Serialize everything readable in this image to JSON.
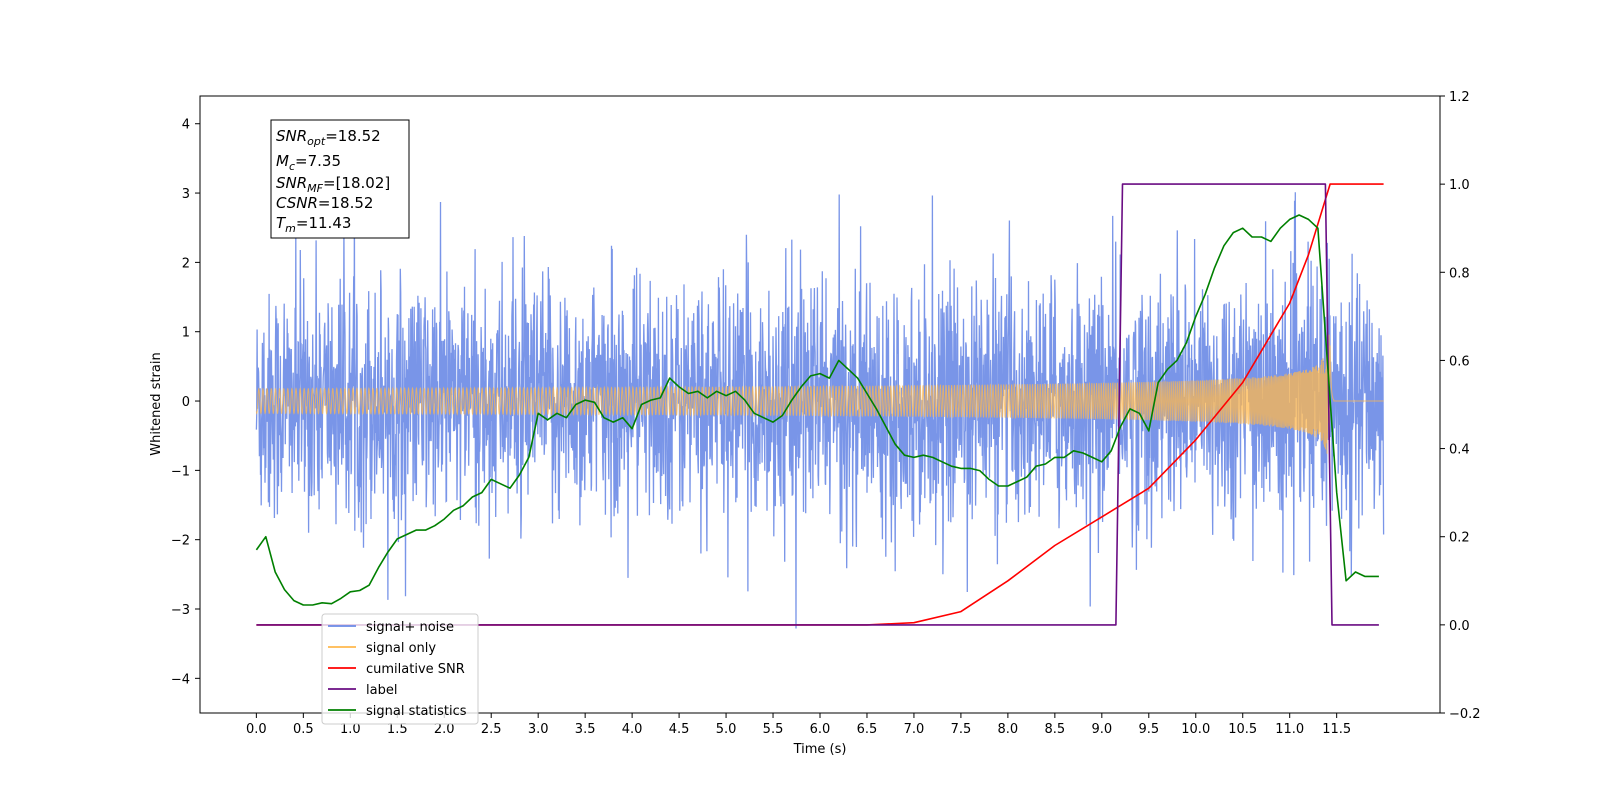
{
  "chart_data": {
    "type": "line",
    "xlabel": "Time (s)",
    "ylabel": "Whitened strain",
    "xlim": [
      -0.6,
      12.6
    ],
    "ylim": [
      -4.5,
      4.4
    ],
    "y2lim": [
      -0.2,
      1.2
    ],
    "x_ticks": [
      "0.0",
      "0.5",
      "1.0",
      "1.5",
      "2.0",
      "2.5",
      "3.0",
      "3.5",
      "4.0",
      "4.5",
      "5.0",
      "5.5",
      "6.0",
      "6.5",
      "7.0",
      "7.5",
      "8.0",
      "8.5",
      "9.0",
      "9.5",
      "10.0",
      "10.5",
      "11.0",
      "11.5"
    ],
    "y_ticks": [
      "4",
      "3",
      "2",
      "1",
      "0",
      "−1",
      "−2",
      "−3",
      "−4"
    ],
    "y2_ticks": [
      "1.2",
      "1.0",
      "0.8",
      "0.6",
      "0.4",
      "0.2",
      "0.0",
      "−0.2"
    ],
    "grid": false,
    "legend_placement": "lower-left",
    "annotation": {
      "snr_opt": {
        "base": "SNR",
        "sub": "opt",
        "value": "=18.52"
      },
      "mc": {
        "base": "M",
        "sub": "c",
        "value": "=7.35"
      },
      "snr_mf": {
        "base": "SNR",
        "sub": "MF",
        "value": "=[18.02]"
      },
      "csnr": {
        "base": "CSNR",
        "value": "=18.52"
      },
      "tm": {
        "base": "T",
        "sub": "m",
        "value": "=11.43"
      }
    },
    "series": [
      {
        "name": "signal+ noise",
        "color": "#6a8ae6",
        "axis": "left",
        "noise_sigma": 0.85,
        "x_range": [
          0.0,
          12.0
        ]
      },
      {
        "name": "signal only",
        "color": "#ffb84d",
        "axis": "left",
        "merger_time": 11.43,
        "peak_amplitude": 1.3
      },
      {
        "name": "cumilative SNR",
        "color": "#ff0000",
        "axis": "right",
        "x": [
          0.0,
          6.5,
          7.0,
          7.5,
          8.0,
          8.5,
          9.0,
          9.5,
          10.0,
          10.5,
          11.0,
          11.2,
          11.43,
          12.0
        ],
        "y": [
          0.0,
          0.0,
          0.005,
          0.03,
          0.1,
          0.18,
          0.245,
          0.31,
          0.42,
          0.55,
          0.73,
          0.84,
          1.0,
          1.0
        ]
      },
      {
        "name": "label",
        "color": "#6a0d83",
        "axis": "right",
        "x": [
          0.0,
          9.15,
          9.22,
          11.38,
          11.45,
          11.95
        ],
        "y": [
          0.0,
          0.0,
          1.0,
          1.0,
          0.0,
          0.0
        ]
      },
      {
        "name": "signal statistics",
        "color": "#008000",
        "axis": "right",
        "x": [
          0.0,
          0.1,
          0.2,
          0.3,
          0.4,
          0.5,
          0.6,
          0.7,
          0.8,
          0.9,
          1.0,
          1.1,
          1.2,
          1.3,
          1.4,
          1.5,
          1.6,
          1.7,
          1.8,
          1.9,
          2.0,
          2.1,
          2.2,
          2.3,
          2.4,
          2.5,
          2.6,
          2.7,
          2.8,
          2.9,
          3.0,
          3.1,
          3.2,
          3.3,
          3.4,
          3.5,
          3.6,
          3.7,
          3.8,
          3.9,
          4.0,
          4.1,
          4.2,
          4.3,
          4.4,
          4.5,
          4.6,
          4.7,
          4.8,
          4.9,
          5.0,
          5.1,
          5.2,
          5.3,
          5.4,
          5.5,
          5.6,
          5.7,
          5.8,
          5.9,
          6.0,
          6.1,
          6.2,
          6.3,
          6.4,
          6.5,
          6.6,
          6.7,
          6.8,
          6.9,
          7.0,
          7.1,
          7.2,
          7.3,
          7.4,
          7.5,
          7.6,
          7.7,
          7.8,
          7.9,
          8.0,
          8.1,
          8.2,
          8.3,
          8.4,
          8.5,
          8.6,
          8.7,
          8.8,
          8.9,
          9.0,
          9.1,
          9.2,
          9.3,
          9.4,
          9.5,
          9.6,
          9.7,
          9.8,
          9.9,
          10.0,
          10.1,
          10.2,
          10.3,
          10.4,
          10.5,
          10.6,
          10.7,
          10.8,
          10.9,
          11.0,
          11.1,
          11.2,
          11.3,
          11.4,
          11.5,
          11.6,
          11.7,
          11.8,
          11.9,
          11.95
        ],
        "y": [
          0.17,
          0.2,
          0.12,
          0.08,
          0.055,
          0.045,
          0.045,
          0.05,
          0.048,
          0.06,
          0.075,
          0.078,
          0.09,
          0.13,
          0.165,
          0.195,
          0.205,
          0.215,
          0.215,
          0.225,
          0.24,
          0.26,
          0.27,
          0.29,
          0.3,
          0.33,
          0.32,
          0.31,
          0.34,
          0.38,
          0.48,
          0.465,
          0.48,
          0.47,
          0.5,
          0.51,
          0.505,
          0.47,
          0.46,
          0.47,
          0.445,
          0.5,
          0.51,
          0.515,
          0.56,
          0.54,
          0.525,
          0.53,
          0.515,
          0.53,
          0.52,
          0.53,
          0.51,
          0.48,
          0.47,
          0.46,
          0.475,
          0.51,
          0.54,
          0.565,
          0.57,
          0.56,
          0.6,
          0.58,
          0.56,
          0.525,
          0.49,
          0.45,
          0.41,
          0.385,
          0.38,
          0.385,
          0.38,
          0.37,
          0.36,
          0.355,
          0.355,
          0.35,
          0.33,
          0.315,
          0.315,
          0.325,
          0.335,
          0.36,
          0.365,
          0.38,
          0.38,
          0.395,
          0.39,
          0.38,
          0.37,
          0.395,
          0.45,
          0.49,
          0.48,
          0.44,
          0.55,
          0.58,
          0.6,
          0.64,
          0.7,
          0.75,
          0.81,
          0.86,
          0.89,
          0.9,
          0.88,
          0.88,
          0.87,
          0.9,
          0.92,
          0.93,
          0.92,
          0.9,
          0.6,
          0.3,
          0.1,
          0.12,
          0.11,
          0.11,
          0.11
        ]
      }
    ]
  }
}
